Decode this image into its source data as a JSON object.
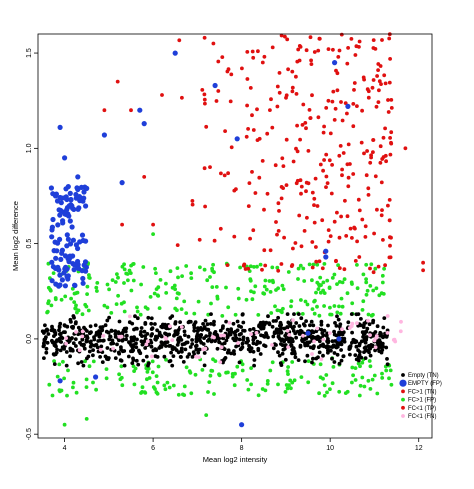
{
  "chart_data": {
    "type": "scatter",
    "xlabel": "Mean log2 intensity",
    "ylabel": "Mean log2 difference",
    "xlim": [
      3.4,
      12.3
    ],
    "ylim": [
      -0.52,
      1.6
    ],
    "x_ticks": [
      {
        "value": 4,
        "label": "4"
      },
      {
        "value": 6,
        "label": "6"
      },
      {
        "value": 8,
        "label": "8"
      },
      {
        "value": 10,
        "label": "10"
      },
      {
        "value": 12,
        "label": "12"
      }
    ],
    "y_ticks": [
      {
        "value": -0.5,
        "label": "-0.5"
      },
      {
        "value": 0.0,
        "label": "0.0"
      },
      {
        "value": 0.5,
        "label": "0.5"
      },
      {
        "value": 1.0,
        "label": "1.0"
      },
      {
        "value": 1.5,
        "label": "1.5"
      }
    ],
    "grid": false,
    "legend_position": "bottom-right",
    "series": [
      {
        "name": "Empty (TN)",
        "color": "#000000",
        "marker_size": "small",
        "cloud": {
          "x_range": [
            3.5,
            11.3
          ],
          "y_center": 0.0,
          "y_spread": 0.1,
          "approx_count": 900
        },
        "points": [
          [
            3.6,
            0.05
          ],
          [
            3.8,
            -0.08
          ],
          [
            4.2,
            0.12
          ],
          [
            5.0,
            -0.1
          ],
          [
            6.5,
            0.08
          ],
          [
            8.0,
            -0.05
          ],
          [
            9.5,
            0.04
          ],
          [
            10.8,
            -0.02
          ],
          [
            11.2,
            0.06
          ]
        ]
      },
      {
        "name": "EMPTY (FP)",
        "color": "#1f3fd9",
        "marker_size": "large",
        "points": [
          [
            3.9,
            1.11
          ],
          [
            4.0,
            0.95
          ],
          [
            4.3,
            0.85
          ],
          [
            4.5,
            0.79
          ],
          [
            4.9,
            1.07
          ],
          [
            5.3,
            0.82
          ],
          [
            5.7,
            1.2
          ],
          [
            5.8,
            1.13
          ],
          [
            6.5,
            1.5
          ],
          [
            7.4,
            1.33
          ],
          [
            7.9,
            1.05
          ],
          [
            9.9,
            0.46
          ],
          [
            10.1,
            1.45
          ],
          [
            10.4,
            1.22
          ],
          [
            9.9,
            0.43
          ],
          [
            4.7,
            -0.2
          ],
          [
            3.9,
            -0.22
          ],
          [
            8.0,
            -0.45
          ],
          [
            9.5,
            0.03
          ],
          [
            10.2,
            0.0
          ]
        ],
        "cluster": {
          "x_range": [
            3.7,
            4.5
          ],
          "y_range": [
            0.27,
            0.8
          ],
          "approx_count": 120
        }
      },
      {
        "name": "FC>1 (TN)",
        "color": "#e01010",
        "marker_size": "small",
        "cloud": {
          "x_range": [
            6.4,
            11.4
          ],
          "y_range": [
            0.35,
            1.6
          ],
          "approx_count": 320
        },
        "points": [
          [
            4.9,
            1.2
          ],
          [
            5.2,
            1.35
          ],
          [
            5.5,
            1.2
          ],
          [
            5.8,
            0.85
          ],
          [
            6.2,
            1.28
          ],
          [
            6.0,
            0.6
          ],
          [
            5.3,
            0.6
          ],
          [
            11.7,
            1.0
          ],
          [
            12.1,
            0.36
          ],
          [
            12.1,
            0.4
          ]
        ]
      },
      {
        "name": "FC>1 (FP)",
        "color": "#22e022",
        "marker_size": "small",
        "cloud": {
          "x_range": [
            3.6,
            11.4
          ],
          "y_bands": [
            [
              0.12,
              0.4
            ],
            [
              -0.3,
              -0.1
            ]
          ],
          "approx_count": 420
        },
        "points": [
          [
            4.0,
            -0.45
          ],
          [
            4.5,
            -0.42
          ],
          [
            7.2,
            -0.4
          ],
          [
            6.0,
            0.55
          ],
          [
            3.9,
            0.28
          ],
          [
            10.5,
            -0.15
          ]
        ]
      },
      {
        "name": "FC<1 (TP)",
        "color": "#e01010",
        "marker_size": "small",
        "points": []
      },
      {
        "name": "FC<1 (FN)",
        "color": "#ffb6e0",
        "marker_size": "small",
        "cloud": {
          "x_range": [
            4.0,
            11.6
          ],
          "y_center": 0.0,
          "y_spread": 0.08,
          "approx_count": 60
        },
        "points": [
          [
            11.6,
            0.09
          ],
          [
            11.3,
            0.12
          ],
          [
            10.9,
            0.02
          ],
          [
            10.5,
            0.08
          ]
        ]
      }
    ]
  }
}
